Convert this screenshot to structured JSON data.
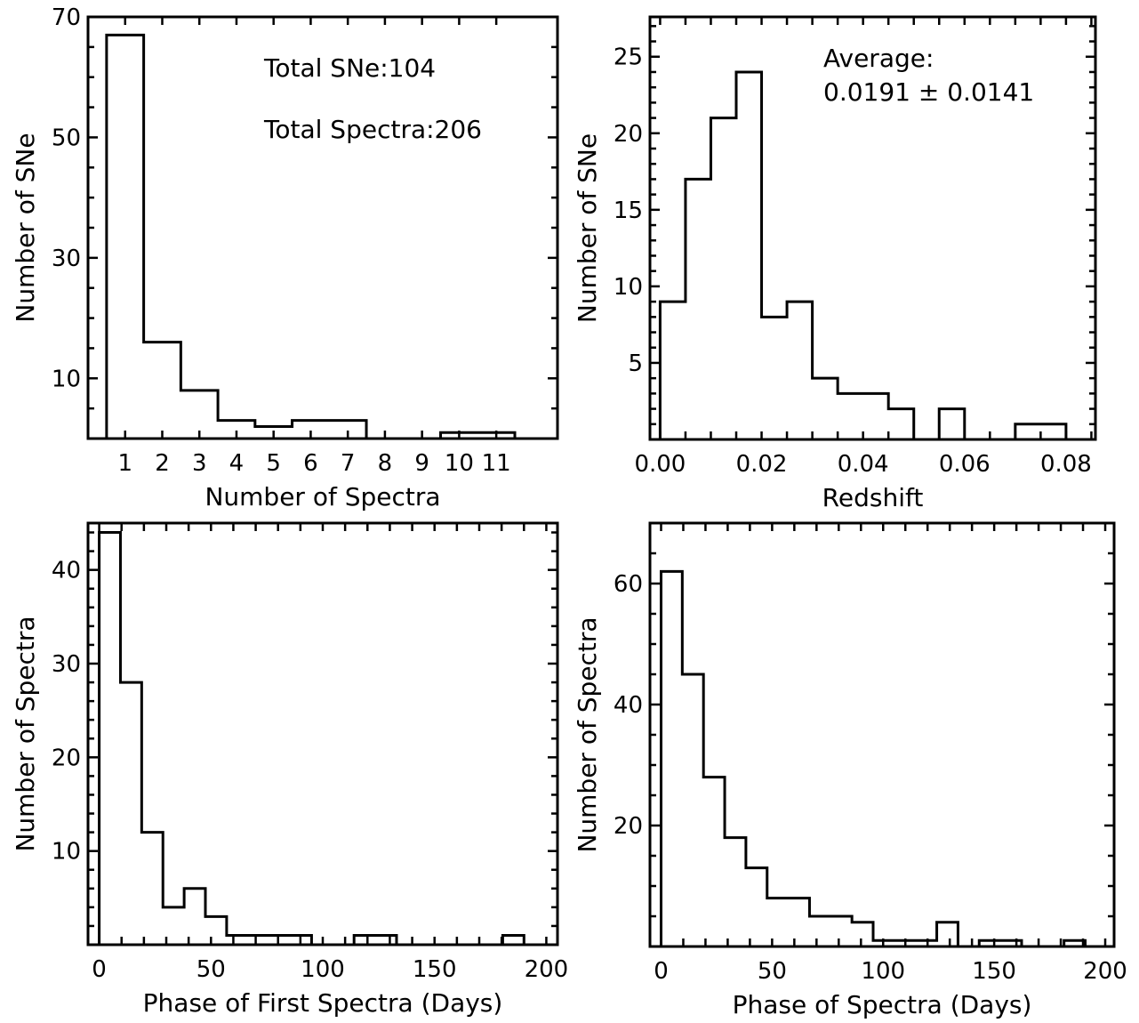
{
  "chart_data": [
    {
      "type": "histogram",
      "xlabel": "Number of Spectra",
      "ylabel": "Number of SNe",
      "xlim": [
        0,
        12.65
      ],
      "ylim": [
        0,
        70
      ],
      "bin_edges": [
        0.5,
        1.5,
        2.5,
        3.5,
        4.5,
        5.5,
        6.5,
        7.5,
        8.5,
        9.5,
        10.5,
        11.5
      ],
      "values": [
        67,
        16,
        8,
        3,
        2,
        3,
        3,
        0,
        0,
        1,
        1
      ],
      "xticks": [
        1,
        2,
        3,
        4,
        5,
        6,
        7,
        8,
        9,
        10,
        11
      ],
      "xtick_labels": [
        "1",
        "2",
        "3",
        "4",
        "5",
        "6",
        "7",
        "8",
        "9",
        "10",
        "11"
      ],
      "yticks": [
        10,
        30,
        50,
        70
      ],
      "ytick_labels": [
        "10",
        "30",
        "50",
        "70"
      ],
      "y_minor_step": 5,
      "annotations": [
        "Total SNe:104",
        "Total Spectra:206"
      ]
    },
    {
      "type": "histogram",
      "xlabel": "Redshift",
      "ylabel": "Number of SNe",
      "xlim": [
        -0.002,
        0.0858
      ],
      "ylim": [
        0,
        27.6
      ],
      "bin_edges": [
        0,
        0.005,
        0.01,
        0.015,
        0.02,
        0.025,
        0.03,
        0.035,
        0.04,
        0.045,
        0.05,
        0.055,
        0.06,
        0.065,
        0.07,
        0.075,
        0.08
      ],
      "values": [
        9,
        17,
        21,
        24,
        8,
        9,
        4,
        3,
        3,
        2,
        0,
        2,
        0,
        0,
        1,
        1
      ],
      "xticks": [
        0,
        0.02,
        0.04,
        0.06,
        0.08
      ],
      "xtick_labels": [
        "0.00",
        "0.02",
        "0.04",
        "0.06",
        "0.08"
      ],
      "x_minor_step": 0.005,
      "yticks": [
        5,
        10,
        15,
        20,
        25
      ],
      "ytick_labels": [
        "5",
        "10",
        "15",
        "20",
        "25"
      ],
      "y_minor_step": 1,
      "annotations": [
        "Average:",
        "0.0191 ± 0.0141"
      ]
    },
    {
      "type": "histogram",
      "xlabel": "Phase of First Spectra (Days)",
      "ylabel": "Number of Spectra",
      "xlim": [
        -5,
        205
      ],
      "ylim": [
        0,
        45
      ],
      "bin_edges": [
        0,
        9.5,
        19,
        28.5,
        38,
        47.5,
        57,
        66.5,
        76,
        85.5,
        95,
        104.5,
        114,
        123.5,
        133,
        142.5,
        152,
        161.5,
        171,
        180.5,
        190
      ],
      "values": [
        44,
        28,
        12,
        4,
        6,
        3,
        1,
        1,
        1,
        1,
        0,
        0,
        1,
        1,
        0,
        0,
        0,
        0,
        0,
        1
      ],
      "xticks": [
        0,
        50,
        100,
        150,
        200
      ],
      "xtick_labels": [
        "0",
        "50",
        "100",
        "150",
        "200"
      ],
      "x_minor_step": 10,
      "yticks": [
        10,
        20,
        30,
        40
      ],
      "ytick_labels": [
        "10",
        "20",
        "30",
        "40"
      ],
      "y_minor_step": 2,
      "annotations": []
    },
    {
      "type": "histogram",
      "xlabel": "Phase of Spectra (Days)",
      "ylabel": "Number of Spectra",
      "xlim": [
        -5,
        204
      ],
      "ylim": [
        0,
        70
      ],
      "bin_edges": [
        0,
        9.55,
        19.1,
        28.65,
        38.2,
        47.75,
        57.3,
        66.85,
        76.4,
        85.95,
        95.5,
        105.05,
        114.6,
        124.15,
        133.7,
        143.25,
        152.8,
        162.35,
        171.9,
        181.45,
        191
      ],
      "values": [
        62,
        45,
        28,
        18,
        13,
        8,
        8,
        5,
        5,
        4,
        1,
        1,
        1,
        4,
        0,
        1,
        1,
        0,
        0,
        1
      ],
      "xticks": [
        0,
        50,
        100,
        150,
        200
      ],
      "xtick_labels": [
        "0",
        "50",
        "100",
        "150",
        "200"
      ],
      "x_minor_step": 10,
      "yticks": [
        20,
        40,
        60
      ],
      "ytick_labels": [
        "20",
        "40",
        "60"
      ],
      "y_minor_step": 5,
      "annotations": []
    }
  ]
}
